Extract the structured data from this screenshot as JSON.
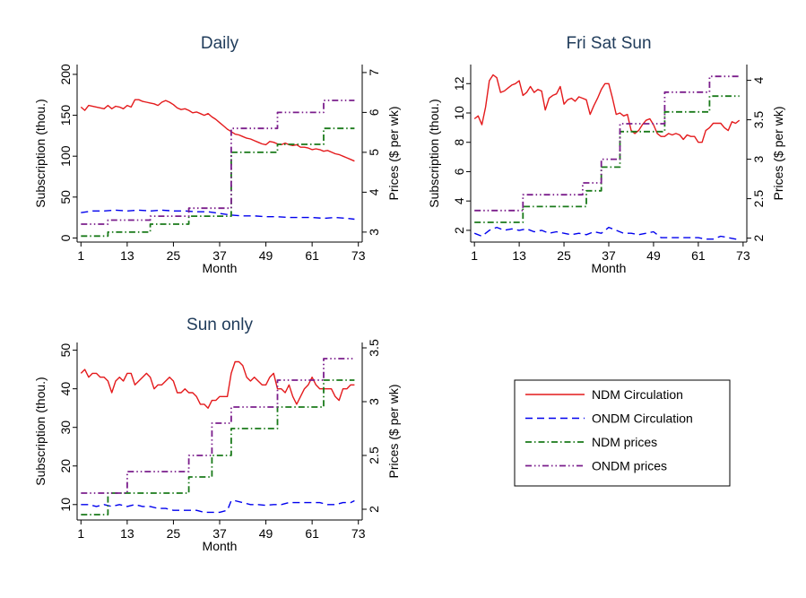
{
  "colors": {
    "ndm_circulation": "#e41a1c",
    "ondm_circulation": "#0000ee",
    "ndm_prices": "#1a7a1a",
    "ondm_prices": "#7b1e8c",
    "title": "#1f3b5a"
  },
  "legend": {
    "items": [
      {
        "label": "NDM Circulation",
        "style": "solid"
      },
      {
        "label": "ONDM Circulation",
        "style": "dash"
      },
      {
        "label": "NDM prices",
        "style": "dashdot"
      },
      {
        "label": "ONDM prices",
        "style": "dashdot"
      }
    ]
  },
  "chart_data": [
    {
      "title": "Daily",
      "type": "line",
      "xlabel": "Month",
      "ylabel": "Subscription (thou.)",
      "y2label": "Prices ($ per wk)",
      "xticks": [
        1,
        13,
        25,
        37,
        49,
        61,
        73
      ],
      "xlim": [
        0,
        74
      ],
      "yticks": [
        0,
        50,
        100,
        150,
        200
      ],
      "ylim": [
        -5,
        212
      ],
      "y2ticks": [
        3,
        4,
        5,
        6,
        7
      ],
      "y2lim": [
        2.75,
        7.2
      ],
      "series": [
        {
          "key": "ndm_circ",
          "axis": "left",
          "x": [
            1,
            2,
            3,
            5,
            7,
            8,
            9,
            10,
            11,
            12,
            13,
            14,
            15,
            16,
            17,
            18,
            19,
            20,
            21,
            22,
            23,
            24,
            25,
            26,
            27,
            28,
            29,
            30,
            31,
            32,
            33,
            34,
            35,
            36,
            37,
            38,
            39,
            40,
            41,
            42,
            43,
            44,
            45,
            46,
            47,
            48,
            49,
            50,
            51,
            52,
            53,
            54,
            55,
            56,
            57,
            58,
            59,
            60,
            61,
            62,
            63,
            64,
            65,
            66,
            67,
            68,
            69,
            70,
            71,
            72
          ],
          "y": [
            160,
            156,
            162,
            160,
            158,
            162,
            158,
            161,
            160,
            158,
            162,
            160,
            169,
            169,
            167,
            166,
            165,
            164,
            162,
            166,
            168,
            166,
            163,
            159,
            157,
            158,
            156,
            153,
            154,
            152,
            150,
            152,
            148,
            145,
            141,
            137,
            133,
            130,
            127,
            126,
            124,
            122,
            121,
            119,
            117,
            115,
            114,
            118,
            117,
            115,
            114,
            116,
            114,
            113,
            114,
            111,
            111,
            110,
            108,
            109,
            108,
            106,
            107,
            105,
            103,
            102,
            100,
            98,
            96,
            94
          ]
        },
        {
          "key": "ondm_circ",
          "axis": "left",
          "x": [
            1,
            4,
            7,
            10,
            13,
            16,
            19,
            22,
            25,
            28,
            31,
            34,
            37,
            40,
            43,
            46,
            49,
            52,
            55,
            58,
            61,
            64,
            67,
            70,
            72
          ],
          "y": [
            31,
            33,
            33,
            34,
            33,
            34,
            33,
            34,
            33,
            33,
            32,
            32,
            30,
            28,
            27,
            27,
            26,
            26,
            25,
            25,
            25,
            24,
            25,
            24,
            23
          ]
        },
        {
          "key": "ndm_price",
          "axis": "right",
          "steps": [
            [
              1,
              2.9
            ],
            [
              8,
              3.0
            ],
            [
              19,
              3.2
            ],
            [
              29,
              3.4
            ],
            [
              40,
              5.0
            ],
            [
              52,
              5.2
            ],
            [
              64,
              5.6
            ],
            [
              72,
              5.6
            ]
          ]
        },
        {
          "key": "ondm_price",
          "axis": "right",
          "steps": [
            [
              1,
              3.2
            ],
            [
              8,
              3.3
            ],
            [
              19,
              3.4
            ],
            [
              29,
              3.6
            ],
            [
              40,
              5.6
            ],
            [
              52,
              6.0
            ],
            [
              64,
              6.3
            ],
            [
              72,
              6.3
            ]
          ]
        }
      ]
    },
    {
      "title": "Fri Sat Sun",
      "type": "line",
      "xlabel": "Month",
      "ylabel": "Subscription (thou.)",
      "y2label": "Prices ($ per wk)",
      "xticks": [
        1,
        13,
        25,
        37,
        49,
        61,
        73
      ],
      "xlim": [
        0,
        74
      ],
      "yticks": [
        2,
        4,
        6,
        8,
        10,
        12
      ],
      "ylim": [
        1.2,
        13.3
      ],
      "y2ticks": [
        2,
        2.5,
        3,
        3.5,
        4
      ],
      "y2ticklabels": [
        "2",
        "2.5",
        "3",
        "3.5",
        "4"
      ],
      "y2lim": [
        1.95,
        4.2
      ],
      "series": [
        {
          "key": "ndm_circ",
          "axis": "left",
          "x": [
            1,
            2,
            3,
            4,
            5,
            6,
            7,
            8,
            9,
            10,
            11,
            12,
            13,
            14,
            15,
            16,
            17,
            18,
            19,
            20,
            21,
            22,
            23,
            24,
            25,
            26,
            27,
            28,
            29,
            30,
            31,
            32,
            33,
            34,
            35,
            36,
            37,
            38,
            39,
            40,
            41,
            42,
            43,
            44,
            45,
            46,
            47,
            48,
            49,
            50,
            51,
            52,
            53,
            54,
            55,
            56,
            57,
            58,
            59,
            60,
            61,
            62,
            63,
            64,
            65,
            66,
            67,
            68,
            69,
            70,
            71,
            72
          ],
          "y": [
            9.6,
            9.8,
            9.2,
            10.4,
            12.2,
            12.6,
            12.4,
            11.4,
            11.5,
            11.7,
            11.9,
            12.0,
            12.2,
            11.2,
            11.4,
            11.8,
            11.4,
            11.6,
            11.5,
            10.2,
            11.0,
            11.2,
            11.3,
            11.8,
            10.6,
            10.9,
            11.0,
            10.8,
            11.1,
            11.0,
            10.9,
            9.9,
            10.5,
            11.0,
            11.6,
            12.0,
            12.0,
            11.0,
            9.9,
            10.0,
            9.8,
            9.9,
            8.8,
            8.6,
            8.8,
            9.2,
            9.5,
            9.6,
            9.2,
            8.6,
            8.4,
            8.4,
            8.6,
            8.5,
            8.6,
            8.5,
            8.2,
            8.5,
            8.4,
            8.4,
            8.0,
            8.0,
            8.8,
            9.0,
            9.3,
            9.3,
            9.3,
            9.0,
            8.8,
            9.4,
            9.3,
            9.5
          ]
        },
        {
          "key": "ondm_circ",
          "axis": "left",
          "x": [
            1,
            3,
            5,
            7,
            9,
            11,
            13,
            15,
            17,
            19,
            21,
            23,
            25,
            27,
            29,
            31,
            33,
            35,
            37,
            39,
            41,
            43,
            45,
            47,
            49,
            51,
            53,
            55,
            57,
            59,
            61,
            63,
            65,
            67,
            69,
            71,
            72
          ],
          "y": [
            1.8,
            1.6,
            2.0,
            2.2,
            2.0,
            2.1,
            2.0,
            2.1,
            1.9,
            2.0,
            1.8,
            1.9,
            1.8,
            1.7,
            1.8,
            1.7,
            1.9,
            1.8,
            2.2,
            2.0,
            1.8,
            1.8,
            1.7,
            1.8,
            1.9,
            1.5,
            1.5,
            1.5,
            1.5,
            1.5,
            1.5,
            1.4,
            1.4,
            1.6,
            1.5,
            1.4,
            1.4
          ]
        },
        {
          "key": "ndm_price",
          "axis": "right",
          "steps": [
            [
              1,
              2.2
            ],
            [
              14,
              2.4
            ],
            [
              31,
              2.6
            ],
            [
              35,
              2.9
            ],
            [
              40,
              3.35
            ],
            [
              52,
              3.6
            ],
            [
              64,
              3.8
            ],
            [
              72,
              3.8
            ]
          ]
        },
        {
          "key": "ondm_price",
          "axis": "right",
          "steps": [
            [
              1,
              2.35
            ],
            [
              14,
              2.55
            ],
            [
              30,
              2.7
            ],
            [
              35,
              3.0
            ],
            [
              40,
              3.45
            ],
            [
              52,
              3.85
            ],
            [
              64,
              4.05
            ],
            [
              72,
              4.05
            ]
          ]
        }
      ]
    },
    {
      "title": "Sun only",
      "type": "line",
      "xlabel": "Month",
      "ylabel": "Subscription (thou.)",
      "y2label": "Prices ($ per wk)",
      "xticks": [
        1,
        13,
        25,
        37,
        49,
        61,
        73
      ],
      "xlim": [
        0,
        74
      ],
      "yticks": [
        10,
        20,
        30,
        40,
        50
      ],
      "ylim": [
        6,
        52
      ],
      "y2ticks": [
        2,
        2.5,
        3,
        3.5
      ],
      "y2ticklabels": [
        "2",
        "2.5",
        "3",
        "3.5"
      ],
      "y2lim": [
        1.9,
        3.55
      ],
      "series": [
        {
          "key": "ndm_circ",
          "axis": "left",
          "x": [
            1,
            2,
            3,
            4,
            5,
            6,
            7,
            8,
            9,
            10,
            11,
            12,
            13,
            14,
            15,
            16,
            17,
            18,
            19,
            20,
            21,
            22,
            23,
            24,
            25,
            26,
            27,
            28,
            29,
            30,
            31,
            32,
            33,
            34,
            35,
            36,
            37,
            38,
            39,
            40,
            41,
            42,
            43,
            44,
            45,
            46,
            47,
            48,
            49,
            50,
            51,
            52,
            53,
            54,
            55,
            56,
            57,
            58,
            59,
            60,
            61,
            62,
            63,
            64,
            65,
            66,
            67,
            68,
            69,
            70,
            71,
            72
          ],
          "y": [
            44,
            45,
            43,
            44,
            44,
            43,
            43,
            42,
            39,
            42,
            43,
            42,
            44,
            44,
            41,
            42,
            43,
            44,
            43,
            40,
            41,
            41,
            42,
            43,
            42,
            39,
            39,
            40,
            39,
            39,
            38,
            36,
            36,
            35,
            37,
            37,
            38,
            38,
            38,
            44,
            47,
            47,
            46,
            43,
            42,
            43,
            42,
            41,
            41,
            43,
            44,
            40,
            40,
            39,
            41,
            38,
            36,
            38,
            40,
            41,
            43,
            41,
            40,
            40,
            40,
            40,
            38,
            37,
            40,
            40,
            41,
            41
          ]
        },
        {
          "key": "ondm_circ",
          "axis": "left",
          "x": [
            1,
            3,
            5,
            7,
            9,
            11,
            13,
            15,
            17,
            19,
            21,
            23,
            25,
            27,
            29,
            31,
            33,
            35,
            37,
            39,
            40,
            41,
            43,
            45,
            47,
            49,
            51,
            53,
            55,
            57,
            59,
            61,
            63,
            65,
            67,
            69,
            71,
            72
          ],
          "y": [
            10,
            10,
            9.5,
            10,
            9.5,
            10,
            9.5,
            10,
            9.5,
            9.5,
            9.0,
            9.0,
            8.5,
            8.5,
            8.5,
            8.5,
            8.0,
            8.0,
            8.0,
            8.5,
            11,
            11,
            10.5,
            10,
            10,
            9.8,
            10,
            10,
            10.5,
            10.5,
            10.5,
            10.5,
            10.5,
            10,
            10,
            10.5,
            10.5,
            11
          ]
        },
        {
          "key": "ndm_price",
          "axis": "right",
          "steps": [
            [
              1,
              1.95
            ],
            [
              8,
              2.15
            ],
            [
              29,
              2.3
            ],
            [
              35,
              2.5
            ],
            [
              40,
              2.75
            ],
            [
              52,
              2.95
            ],
            [
              64,
              3.2
            ],
            [
              72,
              3.2
            ]
          ]
        },
        {
          "key": "ondm_price",
          "axis": "right",
          "steps": [
            [
              1,
              2.15
            ],
            [
              13,
              2.35
            ],
            [
              29,
              2.5
            ],
            [
              35,
              2.8
            ],
            [
              40,
              2.95
            ],
            [
              52,
              3.2
            ],
            [
              64,
              3.4
            ],
            [
              72,
              3.4
            ]
          ]
        }
      ]
    }
  ]
}
